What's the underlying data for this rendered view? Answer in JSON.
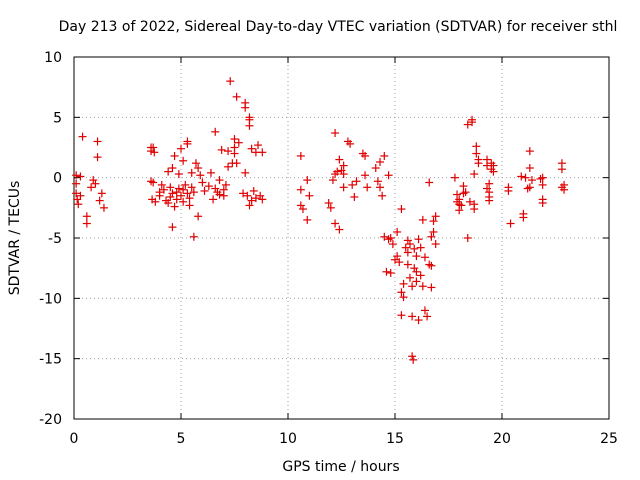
{
  "chart_data": {
    "type": "scatter",
    "title": "Day 213 of 2022, Sidereal Day-to-day VTEC variation (SDTVAR) for receiver sthl",
    "xlabel": "GPS time / hours",
    "ylabel": "SDTVAR / TECUs",
    "xlim": [
      0,
      25
    ],
    "ylim": [
      -20,
      10
    ],
    "xticks": [
      0,
      5,
      10,
      15,
      20,
      25
    ],
    "yticks": [
      -20,
      -15,
      -10,
      -5,
      0,
      5,
      10
    ],
    "grid": true,
    "marker": "plus",
    "color": "#e00000",
    "points": [
      [
        0.1,
        0.2
      ],
      [
        0.1,
        -0.5
      ],
      [
        0.1,
        -1.3
      ],
      [
        0.15,
        -1.8
      ],
      [
        0.2,
        -2.2
      ],
      [
        0.3,
        -1.5
      ],
      [
        0.3,
        0.1
      ],
      [
        0.4,
        3.4
      ],
      [
        0.6,
        -3.2
      ],
      [
        0.6,
        -3.8
      ],
      [
        0.8,
        -0.8
      ],
      [
        0.9,
        -0.2
      ],
      [
        1.0,
        -0.5
      ],
      [
        1.1,
        1.7
      ],
      [
        1.1,
        3.0
      ],
      [
        1.2,
        -1.9
      ],
      [
        1.3,
        -1.3
      ],
      [
        1.4,
        -2.5
      ],
      [
        3.6,
        2.5
      ],
      [
        3.6,
        2.2
      ],
      [
        3.6,
        -0.3
      ],
      [
        3.65,
        -1.8
      ],
      [
        3.7,
        2.5
      ],
      [
        3.7,
        -0.4
      ],
      [
        3.75,
        2.1
      ],
      [
        3.8,
        -2.0
      ],
      [
        4.0,
        -1.2
      ],
      [
        4.0,
        -1.5
      ],
      [
        4.1,
        -0.6
      ],
      [
        4.2,
        -1.0
      ],
      [
        4.3,
        -1.9
      ],
      [
        4.4,
        0.5
      ],
      [
        4.4,
        -2.1
      ],
      [
        4.5,
        -1.6
      ],
      [
        4.5,
        -0.8
      ],
      [
        4.6,
        -1.3
      ],
      [
        4.6,
        0.8
      ],
      [
        4.6,
        -4.1
      ],
      [
        4.7,
        -2.4
      ],
      [
        4.7,
        1.8
      ],
      [
        4.8,
        -1.2
      ],
      [
        4.8,
        -1.8
      ],
      [
        4.9,
        0.3
      ],
      [
        4.9,
        -0.9
      ],
      [
        5.0,
        -1.5
      ],
      [
        5.0,
        2.4
      ],
      [
        5.1,
        -2.0
      ],
      [
        5.1,
        1.4
      ],
      [
        5.1,
        -1.0
      ],
      [
        5.2,
        -0.6
      ],
      [
        5.3,
        -1.3
      ],
      [
        5.3,
        2.8
      ],
      [
        5.3,
        3.0
      ],
      [
        5.4,
        -1.7
      ],
      [
        5.4,
        -2.3
      ],
      [
        5.5,
        0.4
      ],
      [
        5.5,
        -0.8
      ],
      [
        5.6,
        -4.9
      ],
      [
        5.6,
        -1.2
      ],
      [
        5.7,
        1.2
      ],
      [
        5.8,
        0.8
      ],
      [
        5.8,
        -3.2
      ],
      [
        5.9,
        0.2
      ],
      [
        6.0,
        -0.4
      ],
      [
        6.1,
        -1.1
      ],
      [
        6.3,
        -0.7
      ],
      [
        6.4,
        0.4
      ],
      [
        6.5,
        -1.8
      ],
      [
        6.6,
        3.8
      ],
      [
        6.6,
        -0.9
      ],
      [
        6.7,
        -1.2
      ],
      [
        6.8,
        -1.4
      ],
      [
        6.8,
        -0.2
      ],
      [
        6.9,
        2.3
      ],
      [
        7.0,
        -1.0
      ],
      [
        7.0,
        -1.5
      ],
      [
        7.1,
        -0.6
      ],
      [
        7.2,
        2.2
      ],
      [
        7.2,
        0.9
      ],
      [
        7.3,
        8.0
      ],
      [
        7.4,
        1.2
      ],
      [
        7.5,
        2.5
      ],
      [
        7.5,
        2.0
      ],
      [
        7.5,
        3.2
      ],
      [
        7.6,
        6.7
      ],
      [
        7.6,
        1.2
      ],
      [
        7.7,
        2.9
      ],
      [
        7.9,
        -1.3
      ],
      [
        8.0,
        6.2
      ],
      [
        8.0,
        5.8
      ],
      [
        8.0,
        0.4
      ],
      [
        8.1,
        -1.5
      ],
      [
        8.2,
        5.0
      ],
      [
        8.2,
        4.8
      ],
      [
        8.2,
        4.3
      ],
      [
        8.2,
        -2.3
      ],
      [
        8.3,
        -1.9
      ],
      [
        8.3,
        2.4
      ],
      [
        8.4,
        -1.1
      ],
      [
        8.5,
        2.1
      ],
      [
        8.5,
        -1.7
      ],
      [
        8.6,
        2.7
      ],
      [
        8.7,
        -1.5
      ],
      [
        8.8,
        -1.8
      ],
      [
        8.8,
        2.1
      ],
      [
        10.6,
        1.8
      ],
      [
        10.6,
        -1.0
      ],
      [
        10.6,
        -2.3
      ],
      [
        10.7,
        -2.6
      ],
      [
        10.9,
        -0.2
      ],
      [
        10.9,
        -3.5
      ],
      [
        11.0,
        -1.5
      ],
      [
        11.9,
        -2.1
      ],
      [
        12.0,
        -2.5
      ],
      [
        12.1,
        -0.2
      ],
      [
        12.2,
        3.7
      ],
      [
        12.2,
        0.3
      ],
      [
        12.2,
        -3.8
      ],
      [
        12.3,
        0.5
      ],
      [
        12.4,
        1.5
      ],
      [
        12.4,
        -4.3
      ],
      [
        12.5,
        0.6
      ],
      [
        12.6,
        1.0
      ],
      [
        12.6,
        -0.8
      ],
      [
        12.6,
        0.3
      ],
      [
        12.8,
        3.0
      ],
      [
        12.9,
        2.8
      ],
      [
        13.0,
        -0.6
      ],
      [
        13.1,
        -1.6
      ],
      [
        13.2,
        -0.3
      ],
      [
        13.5,
        2.0
      ],
      [
        13.6,
        1.8
      ],
      [
        13.6,
        0.2
      ],
      [
        13.7,
        -0.8
      ],
      [
        14.1,
        0.8
      ],
      [
        14.2,
        -0.3
      ],
      [
        14.3,
        1.3
      ],
      [
        14.3,
        -0.8
      ],
      [
        14.4,
        -1.5
      ],
      [
        14.5,
        -4.9
      ],
      [
        14.5,
        1.8
      ],
      [
        14.6,
        -7.8
      ],
      [
        14.7,
        0.2
      ],
      [
        14.7,
        -5.1
      ],
      [
        14.8,
        -7.9
      ],
      [
        14.8,
        -5.0
      ],
      [
        14.9,
        -5.5
      ],
      [
        15.0,
        -6.8
      ],
      [
        15.1,
        -4.5
      ],
      [
        15.1,
        -6.5
      ],
      [
        15.2,
        -7.0
      ],
      [
        15.3,
        -9.5
      ],
      [
        15.3,
        -11.4
      ],
      [
        15.3,
        -2.6
      ],
      [
        15.4,
        -8.8
      ],
      [
        15.4,
        -9.9
      ],
      [
        15.5,
        -5.8
      ],
      [
        15.6,
        -5.2
      ],
      [
        15.6,
        -6.2
      ],
      [
        15.6,
        -7.2
      ],
      [
        15.7,
        -5.5
      ],
      [
        15.7,
        -8.3
      ],
      [
        15.8,
        -9.0
      ],
      [
        15.8,
        -11.5
      ],
      [
        15.8,
        -14.8
      ],
      [
        15.85,
        -15.1
      ],
      [
        15.9,
        -7.5
      ],
      [
        15.9,
        -5.9
      ],
      [
        16.0,
        -6.5
      ],
      [
        16.0,
        -7.8
      ],
      [
        16.0,
        -8.6
      ],
      [
        16.1,
        -11.8
      ],
      [
        16.1,
        -5.1
      ],
      [
        16.2,
        -5.8
      ],
      [
        16.2,
        -8.1
      ],
      [
        16.3,
        -3.5
      ],
      [
        16.3,
        -9.0
      ],
      [
        16.4,
        -11.0
      ],
      [
        16.4,
        -6.6
      ],
      [
        16.5,
        -11.5
      ],
      [
        16.6,
        -0.4
      ],
      [
        16.6,
        -7.2
      ],
      [
        16.7,
        -4.9
      ],
      [
        16.7,
        -9.1
      ],
      [
        16.7,
        -7.3
      ],
      [
        16.8,
        -3.6
      ],
      [
        16.8,
        -4.5
      ],
      [
        16.9,
        -3.2
      ],
      [
        16.9,
        -5.5
      ],
      [
        17.8,
        0.0
      ],
      [
        17.9,
        -1.4
      ],
      [
        17.9,
        -2.0
      ],
      [
        18.0,
        -2.2
      ],
      [
        18.0,
        -1.8
      ],
      [
        18.0,
        -2.7
      ],
      [
        18.1,
        -2.3
      ],
      [
        18.2,
        -1.3
      ],
      [
        18.2,
        -0.7
      ],
      [
        18.3,
        -1.2
      ],
      [
        18.4,
        4.4
      ],
      [
        18.4,
        -5.0
      ],
      [
        18.5,
        -2.0
      ],
      [
        18.6,
        4.6
      ],
      [
        18.6,
        4.8
      ],
      [
        18.7,
        -2.6
      ],
      [
        18.7,
        -2.2
      ],
      [
        18.7,
        0.3
      ],
      [
        18.8,
        2.6
      ],
      [
        18.8,
        2.0
      ],
      [
        18.9,
        1.5
      ],
      [
        18.9,
        1.2
      ],
      [
        19.3,
        1.5
      ],
      [
        19.3,
        1.0
      ],
      [
        19.3,
        -0.9
      ],
      [
        19.4,
        -0.5
      ],
      [
        19.4,
        -1.2
      ],
      [
        19.4,
        -1.6
      ],
      [
        19.4,
        -1.9
      ],
      [
        19.5,
        0.7
      ],
      [
        19.5,
        1.2
      ],
      [
        19.6,
        0.5
      ],
      [
        19.6,
        1.0
      ],
      [
        20.3,
        -0.8
      ],
      [
        20.3,
        -1.1
      ],
      [
        20.4,
        -3.8
      ],
      [
        20.9,
        0.1
      ],
      [
        21.0,
        -3.0
      ],
      [
        21.0,
        -3.3
      ],
      [
        21.1,
        0.0
      ],
      [
        21.2,
        -0.9
      ],
      [
        21.3,
        2.2
      ],
      [
        21.3,
        0.8
      ],
      [
        21.3,
        -0.8
      ],
      [
        21.4,
        -0.2
      ],
      [
        21.8,
        -0.1
      ],
      [
        21.9,
        -0.6
      ],
      [
        21.9,
        -1.8
      ],
      [
        21.9,
        -2.1
      ],
      [
        21.9,
        0.0
      ],
      [
        22.8,
        1.2
      ],
      [
        22.8,
        0.7
      ],
      [
        22.8,
        -0.8
      ],
      [
        22.9,
        -0.6
      ],
      [
        22.9,
        -1.0
      ]
    ]
  }
}
